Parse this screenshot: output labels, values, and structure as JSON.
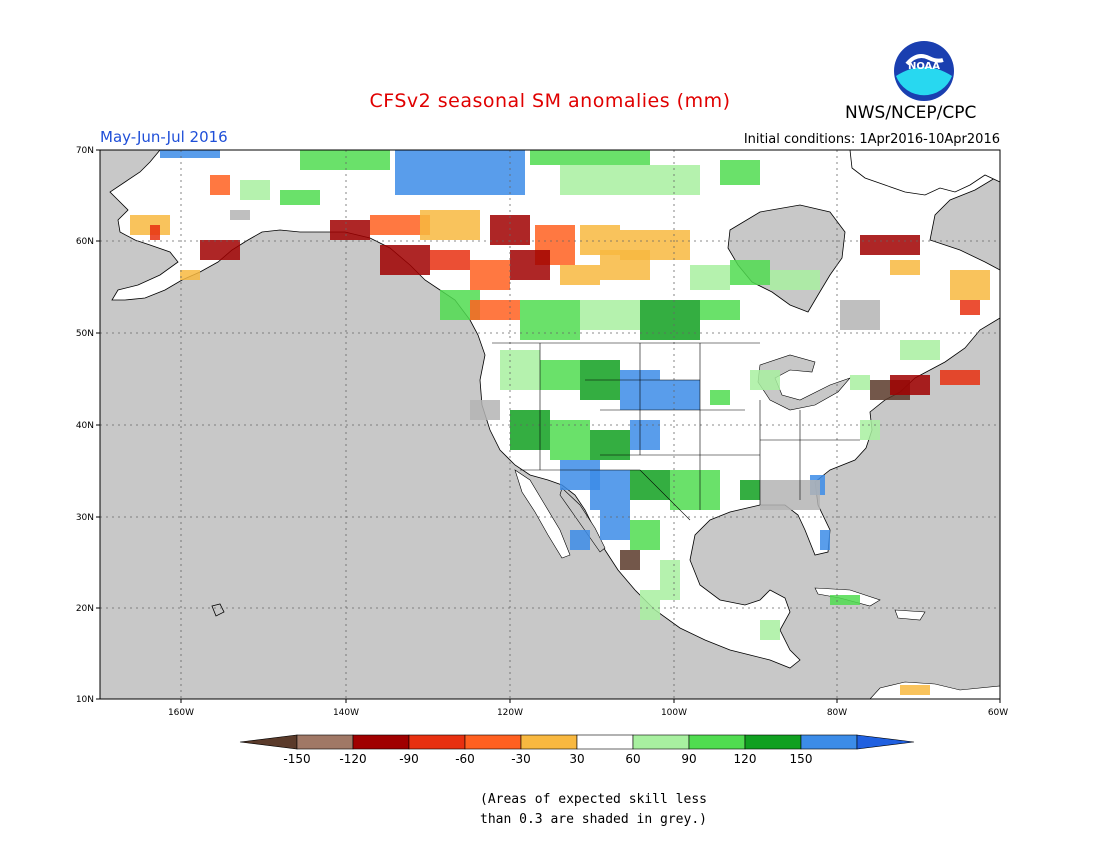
{
  "title": "CFSv2 seasonal SM anomalies (mm)",
  "agency": "NWS/NCEP/CPC",
  "logo_text": "NOAA",
  "season": "May-Jun-Jul 2016",
  "initial_conditions": "Initial conditions: 1Apr2016-10Apr2016",
  "lat_labels": [
    "70N",
    "60N",
    "50N",
    "40N",
    "30N",
    "20N",
    "10N"
  ],
  "lon_labels": [
    "160W",
    "140W",
    "120W",
    "100W",
    "80W",
    "60W"
  ],
  "colorbar": {
    "labels": [
      "-150",
      "-120",
      "-90",
      "-60",
      "-30",
      "30",
      "60",
      "90",
      "120",
      "150"
    ],
    "colors": [
      "#5a3a2a",
      "#a07866",
      "#a00000",
      "#e83010",
      "#ff6020",
      "#f8b840",
      "#ffffff",
      "#a8f0a0",
      "#50dc50",
      "#10a020",
      "#3c8ce8",
      "#2060e0"
    ]
  },
  "note_line1": "(Areas of expected skill less",
  "note_line2": "than 0.3 are shaded in grey.)",
  "colors": {
    "ocean": "#c8c8c8",
    "land": "#ffffff",
    "title_red": "#e00000",
    "season_blue": "#1f4fd8"
  }
}
